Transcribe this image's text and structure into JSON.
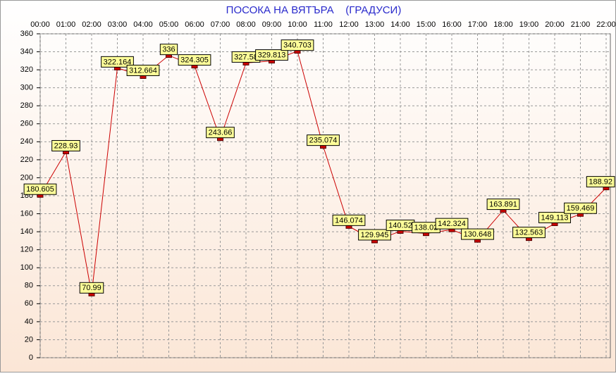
{
  "chart_data": {
    "type": "line",
    "title": "ПОСОКА НА ВЯТЪРА    (ГРАДУСИ)",
    "categories": [
      "00:00",
      "01:00",
      "02:00",
      "03:00",
      "04:00",
      "05:00",
      "06:00",
      "07:00",
      "08:00",
      "09:00",
      "10:00",
      "11:00",
      "12:00",
      "13:00",
      "14:00",
      "15:00",
      "16:00",
      "17:00",
      "18:00",
      "19:00",
      "20:00",
      "21:00",
      "22:00"
    ],
    "series": [
      {
        "color": "#cc0000",
        "values": [
          180.605,
          228.93,
          70.99,
          322.164,
          312.664,
          336,
          324.305,
          243.66,
          327.58,
          329.813,
          340.703,
          235.074,
          146.074,
          129.945,
          140.52,
          138.02,
          142.324,
          130.648,
          163.891,
          132.563,
          149.113,
          159.469,
          188.92
        ]
      }
    ],
    "ylim": [
      0,
      360
    ],
    "yticks": [
      0,
      20,
      40,
      60,
      80,
      100,
      120,
      140,
      160,
      180,
      200,
      220,
      240,
      260,
      280,
      300,
      320,
      340,
      360
    ],
    "grid": true
  }
}
